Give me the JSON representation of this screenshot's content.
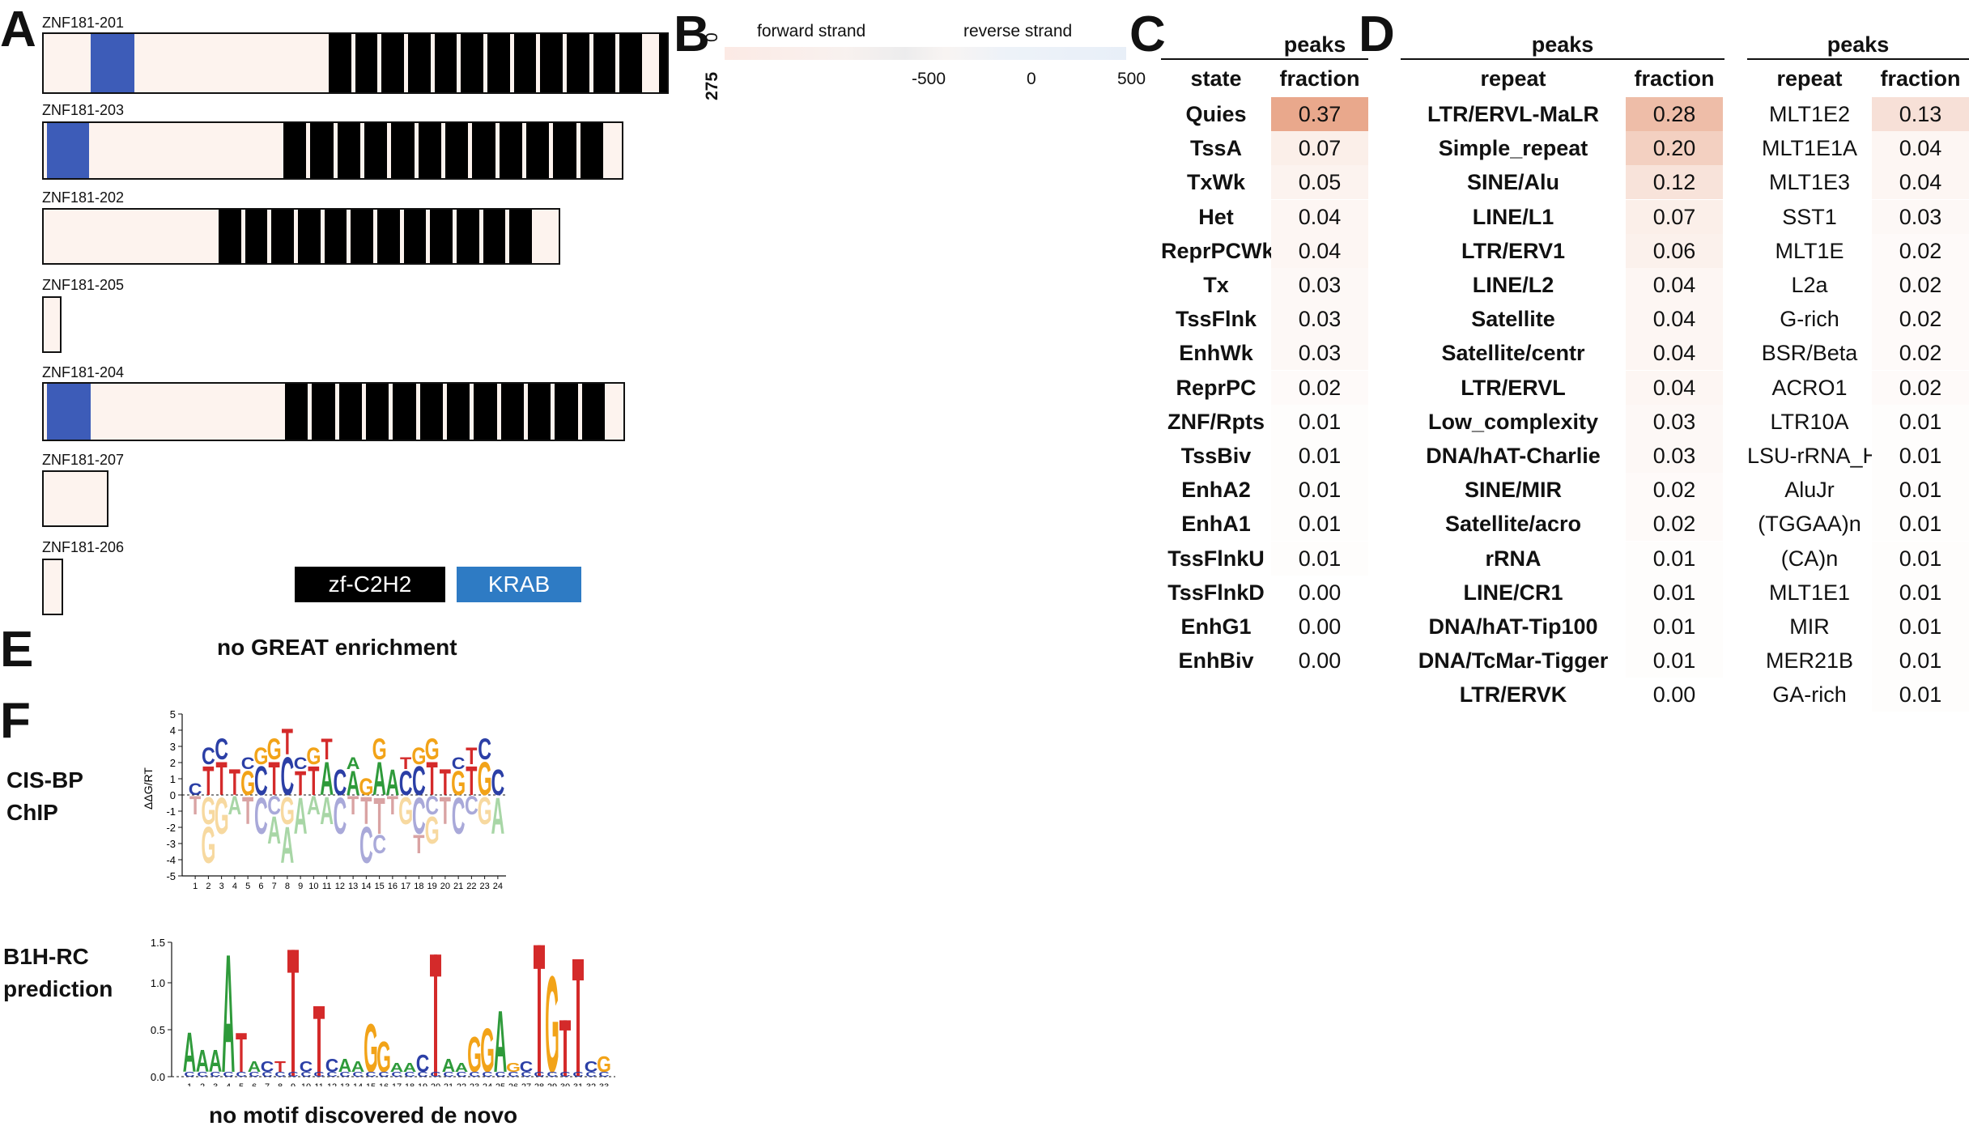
{
  "panels": {
    "A": "A",
    "B": "B",
    "C": "C",
    "D": "D",
    "E": "E",
    "F": "F"
  },
  "panelA": {
    "isoforms": [
      {
        "name": "ZNF181-201"
      },
      {
        "name": "ZNF181-203"
      },
      {
        "name": "ZNF181-202"
      },
      {
        "name": "ZNF181-205"
      },
      {
        "name": "ZNF181-204"
      },
      {
        "name": "ZNF181-207"
      },
      {
        "name": "ZNF181-206"
      }
    ],
    "legend": {
      "zf_label": "zf-C2H2",
      "zf_color": "#000000",
      "krab_label": "KRAB",
      "krab_color": "#3d5cb8",
      "krab_legend_color": "#2e7bc4"
    }
  },
  "panelB": {
    "forward_label": "forward strand",
    "reverse_label": "reverse strand",
    "y_top": "0",
    "y_bottom": "275",
    "x_ticks": [
      "-500",
      "0",
      "500"
    ]
  },
  "panelC": {
    "header": "peaks",
    "col_state": "state",
    "col_fraction": "fraction",
    "rows": [
      {
        "state": "Quies",
        "fraction": "0.37"
      },
      {
        "state": "TssA",
        "fraction": "0.07"
      },
      {
        "state": "TxWk",
        "fraction": "0.05"
      },
      {
        "state": "Het",
        "fraction": "0.04"
      },
      {
        "state": "ReprPCWk",
        "fraction": "0.04"
      },
      {
        "state": "Tx",
        "fraction": "0.03"
      },
      {
        "state": "TssFlnk",
        "fraction": "0.03"
      },
      {
        "state": "EnhWk",
        "fraction": "0.03"
      },
      {
        "state": "ReprPC",
        "fraction": "0.02"
      },
      {
        "state": "ZNF/Rpts",
        "fraction": "0.01"
      },
      {
        "state": "TssBiv",
        "fraction": "0.01"
      },
      {
        "state": "EnhA2",
        "fraction": "0.01"
      },
      {
        "state": "EnhA1",
        "fraction": "0.01"
      },
      {
        "state": "TssFlnkU",
        "fraction": "0.01"
      },
      {
        "state": "TssFlnkD",
        "fraction": "0.00"
      },
      {
        "state": "EnhG1",
        "fraction": "0.00"
      },
      {
        "state": "EnhBiv",
        "fraction": "0.00"
      }
    ]
  },
  "panelD1": {
    "header": "peaks",
    "col_repeat": "repeat",
    "col_fraction": "fraction",
    "rows": [
      {
        "repeat": "LTR/ERVL-MaLR",
        "fraction": "0.28"
      },
      {
        "repeat": "Simple_repeat",
        "fraction": "0.20"
      },
      {
        "repeat": "SINE/Alu",
        "fraction": "0.12"
      },
      {
        "repeat": "LINE/L1",
        "fraction": "0.07"
      },
      {
        "repeat": "LTR/ERV1",
        "fraction": "0.06"
      },
      {
        "repeat": "LINE/L2",
        "fraction": "0.04"
      },
      {
        "repeat": "Satellite",
        "fraction": "0.04"
      },
      {
        "repeat": "Satellite/centr",
        "fraction": "0.04"
      },
      {
        "repeat": "LTR/ERVL",
        "fraction": "0.04"
      },
      {
        "repeat": "Low_complexity",
        "fraction": "0.03"
      },
      {
        "repeat": "DNA/hAT-Charlie",
        "fraction": "0.03"
      },
      {
        "repeat": "SINE/MIR",
        "fraction": "0.02"
      },
      {
        "repeat": "Satellite/acro",
        "fraction": "0.02"
      },
      {
        "repeat": "rRNA",
        "fraction": "0.01"
      },
      {
        "repeat": "LINE/CR1",
        "fraction": "0.01"
      },
      {
        "repeat": "DNA/hAT-Tip100",
        "fraction": "0.01"
      },
      {
        "repeat": "DNA/TcMar-Tigger",
        "fraction": "0.01"
      },
      {
        "repeat": "LTR/ERVK",
        "fraction": "0.00"
      }
    ]
  },
  "panelD2": {
    "header": "peaks",
    "col_repeat": "repeat",
    "col_fraction": "fraction",
    "rows": [
      {
        "repeat": "MLT1E2",
        "fraction": "0.13"
      },
      {
        "repeat": "MLT1E1A",
        "fraction": "0.04"
      },
      {
        "repeat": "MLT1E3",
        "fraction": "0.04"
      },
      {
        "repeat": "SST1",
        "fraction": "0.03"
      },
      {
        "repeat": "MLT1E",
        "fraction": "0.02"
      },
      {
        "repeat": "L2a",
        "fraction": "0.02"
      },
      {
        "repeat": "G-rich",
        "fraction": "0.02"
      },
      {
        "repeat": "BSR/Beta",
        "fraction": "0.02"
      },
      {
        "repeat": "ACRO1",
        "fraction": "0.02"
      },
      {
        "repeat": "LTR10A",
        "fraction": "0.01"
      },
      {
        "repeat": "LSU-rRNA_Hsa",
        "fraction": "0.01"
      },
      {
        "repeat": "AluJr",
        "fraction": "0.01"
      },
      {
        "repeat": "(TGGAA)n",
        "fraction": "0.01"
      },
      {
        "repeat": "(CA)n",
        "fraction": "0.01"
      },
      {
        "repeat": "MLT1E1",
        "fraction": "0.01"
      },
      {
        "repeat": "MIR",
        "fraction": "0.01"
      },
      {
        "repeat": "MER21B",
        "fraction": "0.01"
      },
      {
        "repeat": "GA-rich",
        "fraction": "0.01"
      }
    ]
  },
  "panelE": {
    "text": "no GREAT enrichment"
  },
  "panelF": {
    "label1_line1": "CIS-BP",
    "label1_line2": "ChIP",
    "label2_line1": "B1H-RC",
    "label2_line2": "prediction",
    "logo1": {
      "ylabel": "ΔΔG/RT",
      "yticks": [
        "5",
        "4",
        "3",
        "2",
        "1",
        "0",
        "-1",
        "-2",
        "-3",
        "-4",
        "-5"
      ],
      "length": 24
    },
    "logo2": {
      "yticks": [
        "1.5",
        "1.0",
        "0.5",
        "0.0"
      ],
      "length": 33
    },
    "caption": "no motif discovered de novo"
  }
}
